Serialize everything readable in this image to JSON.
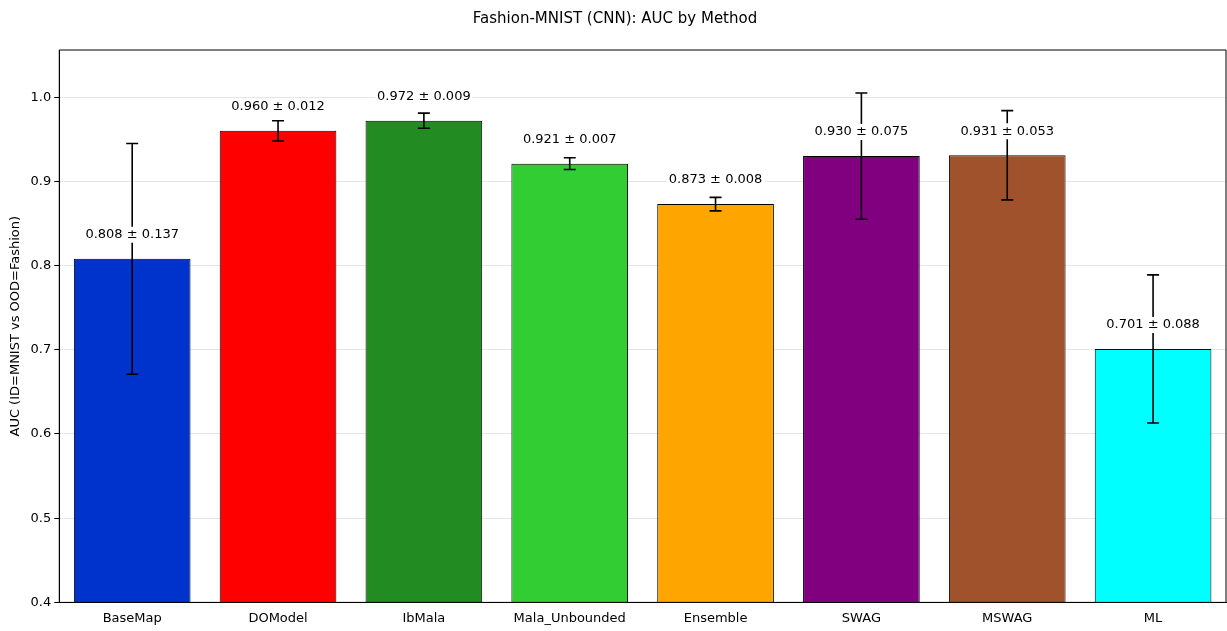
{
  "chart_data": {
    "type": "bar",
    "title": "Fashion-MNIST (CNN): AUC by Method",
    "ylabel": "AUC (ID=MNIST vs OOD=Fashion)",
    "categories": [
      "BaseMap",
      "DOModel",
      "IbMala",
      "Mala_Unbounded",
      "Ensemble",
      "SWAG",
      "MSWAG",
      "ML"
    ],
    "values": [
      0.808,
      0.96,
      0.972,
      0.921,
      0.873,
      0.93,
      0.931,
      0.701
    ],
    "errors": [
      0.137,
      0.012,
      0.009,
      0.007,
      0.008,
      0.075,
      0.053,
      0.088
    ],
    "value_labels": [
      "0.808 ± 0.137",
      "0.960 ± 0.012",
      "0.972 ± 0.009",
      "0.921 ± 0.007",
      "0.873 ± 0.008",
      "0.930 ± 0.075",
      "0.931 ± 0.053",
      "0.701 ± 0.088"
    ],
    "colors": [
      "#0033cc",
      "#ff0000",
      "#228b22",
      "#32cd32",
      "#ffa500",
      "#800080",
      "#a0522d",
      "#00ffff"
    ],
    "ylim": [
      0.4,
      1.056
    ],
    "yticks": [
      {
        "value": 0.4,
        "label": "0.4"
      },
      {
        "value": 0.5,
        "label": "0.5"
      },
      {
        "value": 0.6,
        "label": "0.6"
      },
      {
        "value": 0.7,
        "label": "0.7"
      },
      {
        "value": 0.8,
        "label": "0.8"
      },
      {
        "value": 0.9,
        "label": "0.9"
      },
      {
        "value": 1.0,
        "label": "1.0"
      }
    ],
    "grid": "y",
    "legend": false
  }
}
